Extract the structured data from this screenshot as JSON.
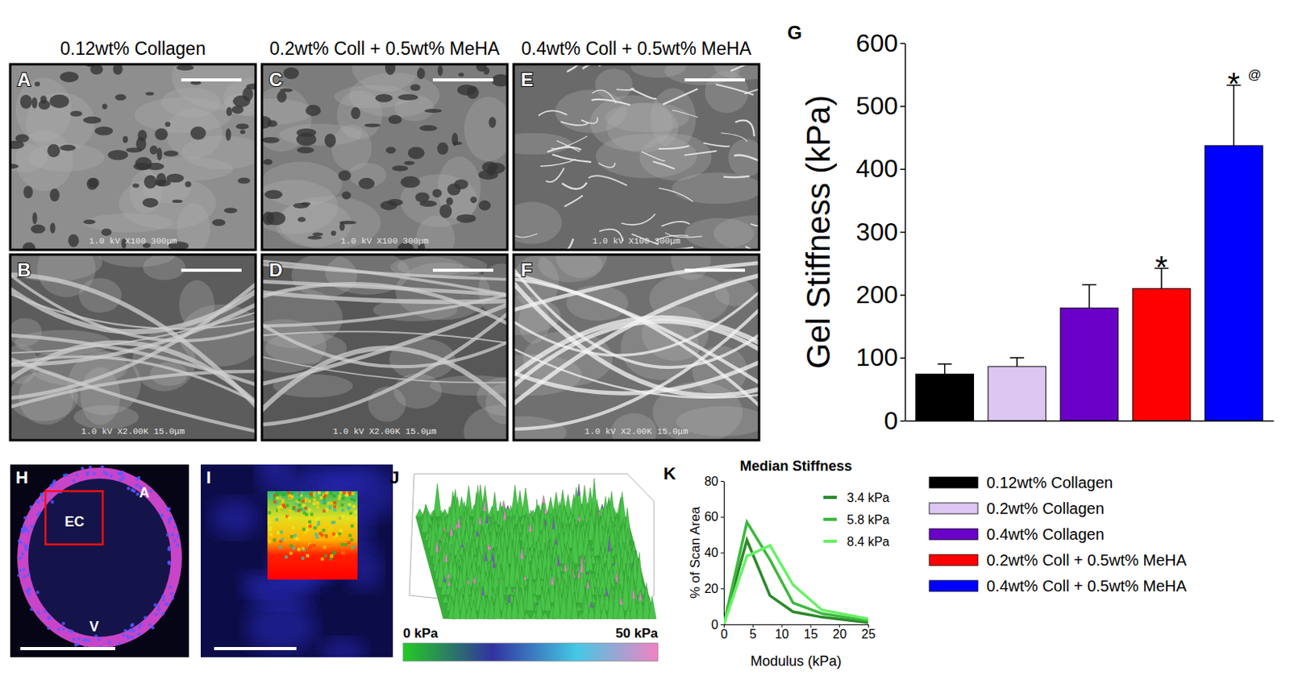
{
  "figure": {
    "sem": {
      "columns": [
        {
          "title": "0.12wt% Collagen",
          "panels": [
            {
              "letter": "A",
              "caption": "1.0 kV X100 300μm"
            },
            {
              "letter": "B",
              "caption": "1.0 kV X2.00K 15.0μm"
            }
          ]
        },
        {
          "title": "0.2wt% Coll + 0.5wt% MeHA",
          "panels": [
            {
              "letter": "C",
              "caption": "1.0 kV X100 300μm"
            },
            {
              "letter": "D",
              "caption": "1.0 kV X2.00K 15.0μm"
            }
          ]
        },
        {
          "title": "0.4wt% Coll + 0.5wt% MeHA",
          "panels": [
            {
              "letter": "E",
              "caption": "1.0 kV X100 300μm"
            },
            {
              "letter": "F",
              "caption": "1.0 kV X2.00K 15.0μm"
            }
          ]
        }
      ]
    },
    "fluorescence": [
      {
        "letter": "H",
        "labels": [
          "EC",
          "A",
          "V"
        ]
      },
      {
        "letter": "I"
      }
    ],
    "afm": {
      "letter": "J",
      "colorbar": {
        "range": [
          0,
          50
        ],
        "ticks": [
          {
            "value": 0,
            "label": "0 kPa"
          },
          {
            "value": 50,
            "label": "50 kPa"
          }
        ]
      }
    }
  },
  "chart_data": [
    {
      "type": "bar",
      "letter": "G",
      "y_label": "Gel Stiffness (kPa)",
      "categories": [
        "0.12wt% Collagen",
        "0.2wt% Collagen",
        "0.4wt% Collagen",
        "0.2wt% Coll + 0.5wt% MeHA",
        "0.4wt% Coll + 0.5wt% MeHA"
      ],
      "values": [
        74,
        86,
        179,
        210,
        437
      ],
      "errors": [
        16,
        14,
        37,
        32,
        96
      ],
      "colors": [
        "#000000",
        "#dcc6f2",
        "#6a00c8",
        "#ff0000",
        "#0000ff"
      ],
      "ylim": [
        0,
        600
      ],
      "yticks": [
        0,
        100,
        200,
        300,
        400,
        500,
        600
      ],
      "tick_labels": "y",
      "legend": "bottom",
      "annotations": [
        {
          "text": "*",
          "category": "0.2wt% Coll + 0.5wt% MeHA"
        },
        {
          "text": "*",
          "category": "0.4wt% Coll + 0.5wt% MeHA"
        },
        {
          "text": "@",
          "category": "0.4wt% Coll + 0.5wt% MeHA"
        }
      ]
    },
    {
      "type": "line",
      "letter": "K",
      "title": "Median Stiffness",
      "x_label": "Modulus (kPa)",
      "y_label": "% of Scan Area",
      "x": [
        0,
        4,
        8,
        12,
        17,
        25
      ],
      "series": [
        {
          "name": "3.4 kPa",
          "color": "#2a8a2a",
          "values": [
            0,
            47,
            16,
            7,
            4,
            1
          ]
        },
        {
          "name": "5.8 kPa",
          "color": "#3cb83c",
          "values": [
            0,
            57,
            36,
            12,
            6,
            2
          ]
        },
        {
          "name": "8.4 kPa",
          "color": "#66f266",
          "values": [
            0,
            38,
            44,
            22,
            8,
            3
          ]
        }
      ],
      "xlim": [
        0,
        25
      ],
      "xticks": [
        0,
        5,
        10,
        15,
        20,
        25
      ],
      "ylim": [
        0,
        80
      ],
      "yticks": [
        0,
        20,
        40,
        60,
        80
      ],
      "legend": "top-right"
    }
  ]
}
